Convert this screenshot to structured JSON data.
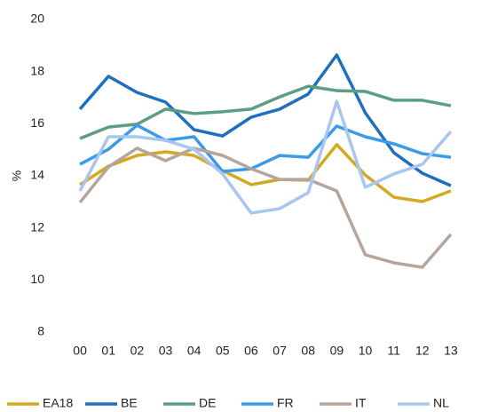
{
  "chart_data": {
    "type": "line",
    "y_label": "%",
    "categories": [
      "00",
      "01",
      "02",
      "03",
      "04",
      "05",
      "06",
      "07",
      "08",
      "09",
      "10",
      "11",
      "12",
      "13"
    ],
    "ylim": [
      8,
      20
    ],
    "yticks": [
      8,
      10,
      12,
      14,
      16,
      18,
      20
    ],
    "series": [
      {
        "name": "EA18",
        "color": "#d4a820",
        "values": [
          13.66,
          14.37,
          14.78,
          14.92,
          14.78,
          14.2,
          13.66,
          13.86,
          13.83,
          15.2,
          14.03,
          13.18,
          13.01,
          13.42
        ]
      },
      {
        "name": "BE",
        "color": "#1f6fbf",
        "values": [
          16.56,
          17.82,
          17.2,
          16.83,
          15.77,
          15.53,
          16.25,
          16.56,
          17.14,
          18.64,
          16.42,
          14.89,
          14.1,
          13.62
        ]
      },
      {
        "name": "DE",
        "color": "#5b9e84",
        "values": [
          15.43,
          15.87,
          15.98,
          16.56,
          16.39,
          16.46,
          16.56,
          17.03,
          17.44,
          17.27,
          17.24,
          16.9,
          16.9,
          16.69
        ]
      },
      {
        "name": "FR",
        "color": "#3a9be8",
        "values": [
          14.44,
          15.02,
          15.94,
          15.36,
          15.5,
          14.17,
          14.27,
          14.78,
          14.71,
          15.91,
          15.5,
          15.23,
          14.85,
          14.71
        ]
      },
      {
        "name": "IT",
        "color": "#b5a59c",
        "values": [
          12.98,
          14.34,
          15.06,
          14.58,
          15.06,
          14.78,
          14.27,
          13.86,
          13.86,
          13.42,
          10.97,
          10.66,
          10.49,
          11.75
        ]
      },
      {
        "name": "NL",
        "color": "#a8c6f0",
        "values": [
          13.42,
          15.5,
          15.5,
          15.36,
          15.02,
          14.07,
          12.57,
          12.74,
          13.35,
          16.86,
          13.56,
          14.07,
          14.44,
          15.7
        ]
      }
    ]
  }
}
